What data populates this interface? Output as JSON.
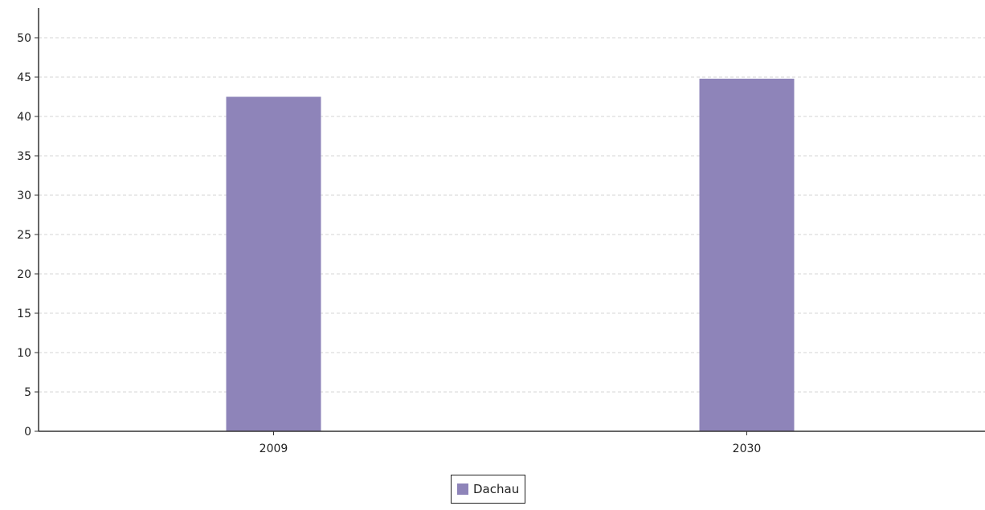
{
  "chart_data": {
    "type": "bar",
    "categories": [
      "2009",
      "2030"
    ],
    "series": [
      {
        "name": "Dachau",
        "values": [
          42.5,
          44.8
        ],
        "color": "#8e84b9"
      }
    ],
    "ylim": [
      0,
      50
    ],
    "yticks": [
      0,
      5,
      10,
      15,
      20,
      25,
      30,
      35,
      40,
      45,
      50
    ],
    "grid": true,
    "legend_position": "bottom-center",
    "title": "",
    "xlabel": "",
    "ylabel": ""
  },
  "colors": {
    "bar": "#8e84b9",
    "axis": "#333333",
    "grid": "#d5d5d5"
  }
}
